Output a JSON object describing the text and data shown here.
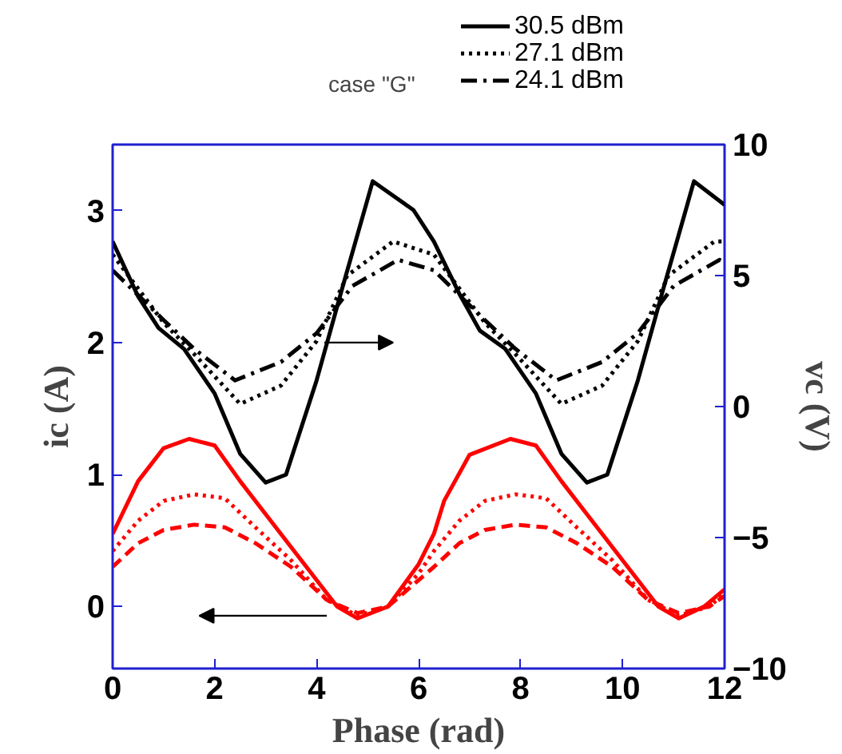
{
  "chart_data": {
    "type": "line",
    "xlabel": "Phase (rad)",
    "ylabel": "ic (A)",
    "y2label": "vc (V)",
    "xlim": [
      0,
      12
    ],
    "xticks": [
      0,
      2,
      4,
      6,
      8,
      10,
      12
    ],
    "ylim": [
      -0.47,
      3.5
    ],
    "yticks": [
      0,
      1,
      2,
      3
    ],
    "y2lim": [
      -10,
      10
    ],
    "y2ticks": [
      -10,
      -5,
      0,
      5,
      10
    ],
    "grid": false,
    "legend": "top right",
    "annotations": [
      "case \"G\""
    ],
    "series": [
      {
        "name": "30.5 dBm",
        "color": "#000000",
        "axis": "y2",
        "line_style": "solid",
        "x": [
          0,
          0.5,
          0.9,
          1.4,
          2.0,
          2.5,
          3.0,
          3.4,
          4.0,
          4.5,
          5.1,
          5.9,
          6.3,
          6.8,
          7.2,
          7.7,
          8.3,
          8.8,
          9.3,
          9.7,
          10.3,
          10.8,
          11.4,
          12
        ],
        "values": [
          6.3,
          4.2,
          3.0,
          2.2,
          0.5,
          -1.8,
          -2.9,
          -2.6,
          1.0,
          4.5,
          8.6,
          7.5,
          6.3,
          4.3,
          2.9,
          2.2,
          0.5,
          -1.8,
          -2.9,
          -2.6,
          1.0,
          4.5,
          8.6,
          7.7
        ]
      },
      {
        "name": "27.1 dBm",
        "color": "#000000",
        "axis": "y2",
        "line_style": "dotted",
        "x": [
          0,
          1,
          1.6,
          2.5,
          3.3,
          4,
          4.6,
          5.5,
          6.3,
          7.3,
          7.9,
          8.8,
          9.6,
          10.3,
          10.9,
          11.8,
          12
        ],
        "values": [
          5.8,
          3.2,
          2.0,
          0.1,
          0.8,
          2.5,
          5.0,
          6.3,
          5.8,
          3.2,
          2.0,
          0.1,
          0.8,
          2.5,
          5.0,
          6.3,
          6.3
        ]
      },
      {
        "name": "24.1 dBm",
        "color": "#000000",
        "axis": "y2",
        "line_style": "dashdot",
        "x": [
          0,
          1,
          1.6,
          2.4,
          3.3,
          4,
          4.7,
          5.6,
          6.3,
          7.3,
          7.9,
          8.7,
          9.6,
          10.3,
          11,
          11.9,
          12
        ],
        "values": [
          5.2,
          3.3,
          2.2,
          1.0,
          1.7,
          2.8,
          4.6,
          5.6,
          5.2,
          3.3,
          2.2,
          1.0,
          1.7,
          2.8,
          4.6,
          5.6,
          5.5
        ]
      },
      {
        "color": "#ff0000",
        "line_style": "solid",
        "x": [
          0,
          0.5,
          1,
          1.5,
          2,
          2.5,
          3,
          3.5,
          4,
          4.4,
          4.8,
          5.4,
          6,
          6.3,
          6.5,
          7,
          7.8,
          8.3,
          8.8,
          9.3,
          9.8,
          10.3,
          10.7,
          11.1,
          11.6,
          12
        ],
        "values": [
          0.55,
          0.95,
          1.2,
          1.27,
          1.22,
          0.95,
          0.7,
          0.45,
          0.2,
          0.0,
          -0.09,
          0.0,
          0.32,
          0.55,
          0.8,
          1.15,
          1.27,
          1.22,
          0.95,
          0.7,
          0.45,
          0.2,
          0.0,
          -0.09,
          0.0,
          0.13
        ]
      },
      {
        "color": "#ff0000",
        "line_style": "dotted",
        "x": [
          0,
          0.5,
          1,
          1.6,
          2.2,
          2.8,
          3.5,
          4.2,
          4.8,
          5.4,
          6,
          6.3,
          6.8,
          7.3,
          7.9,
          8.5,
          9.1,
          9.8,
          10.5,
          11.1,
          11.7,
          12
        ],
        "values": [
          0.42,
          0.65,
          0.8,
          0.85,
          0.82,
          0.6,
          0.35,
          0.05,
          -0.07,
          0.0,
          0.25,
          0.42,
          0.65,
          0.8,
          0.85,
          0.82,
          0.6,
          0.35,
          0.05,
          -0.07,
          0.0,
          0.1
        ]
      },
      {
        "color": "#ff0000",
        "line_style": "dashed",
        "x": [
          0,
          0.5,
          1,
          1.6,
          2.2,
          2.8,
          3.5,
          4.2,
          4.8,
          5.4,
          6,
          6.3,
          6.8,
          7.3,
          7.9,
          8.5,
          9.1,
          9.8,
          10.5,
          11.1,
          11.7,
          12
        ],
        "values": [
          0.3,
          0.48,
          0.58,
          0.62,
          0.6,
          0.48,
          0.3,
          0.05,
          -0.05,
          0.0,
          0.2,
          0.3,
          0.48,
          0.58,
          0.62,
          0.6,
          0.48,
          0.3,
          0.05,
          -0.05,
          0.0,
          0.08
        ]
      }
    ]
  }
}
